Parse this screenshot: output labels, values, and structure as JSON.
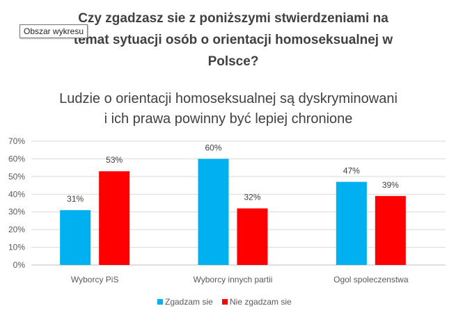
{
  "tooltip": "Obszar wykresu",
  "chart_data": {
    "type": "bar",
    "title_lines": [
      "Czy zgadzasz sie z poniższymi stwierdzeniami na",
      "temat sytuacji osób o orientacji homoseksualnej w",
      "Polsce?"
    ],
    "subtitle_lines": [
      "Ludzie o orientacji homoseksualnej są dyskryminowani",
      "i ich prawa powinny być lepiej chronione"
    ],
    "categories": [
      "Wyborcy PiS",
      "Wyborcy innych partii",
      "Ogol spoleczenstwa"
    ],
    "series": [
      {
        "name": "Zgadzam sie",
        "values": [
          31,
          60,
          47
        ],
        "color": "#00b0f0"
      },
      {
        "name": "Nie zgadzam sie",
        "values": [
          53,
          32,
          39
        ],
        "color": "#ff0000"
      }
    ],
    "data_labels": [
      [
        "31%",
        "60%",
        "47%"
      ],
      [
        "53%",
        "32%",
        "39%"
      ]
    ],
    "y_ticks": [
      "0%",
      "10%",
      "20%",
      "30%",
      "40%",
      "50%",
      "60%",
      "70%"
    ],
    "ylim": [
      0,
      70
    ],
    "ytick_step": 10,
    "grid": true,
    "legend_position": "bottom"
  }
}
